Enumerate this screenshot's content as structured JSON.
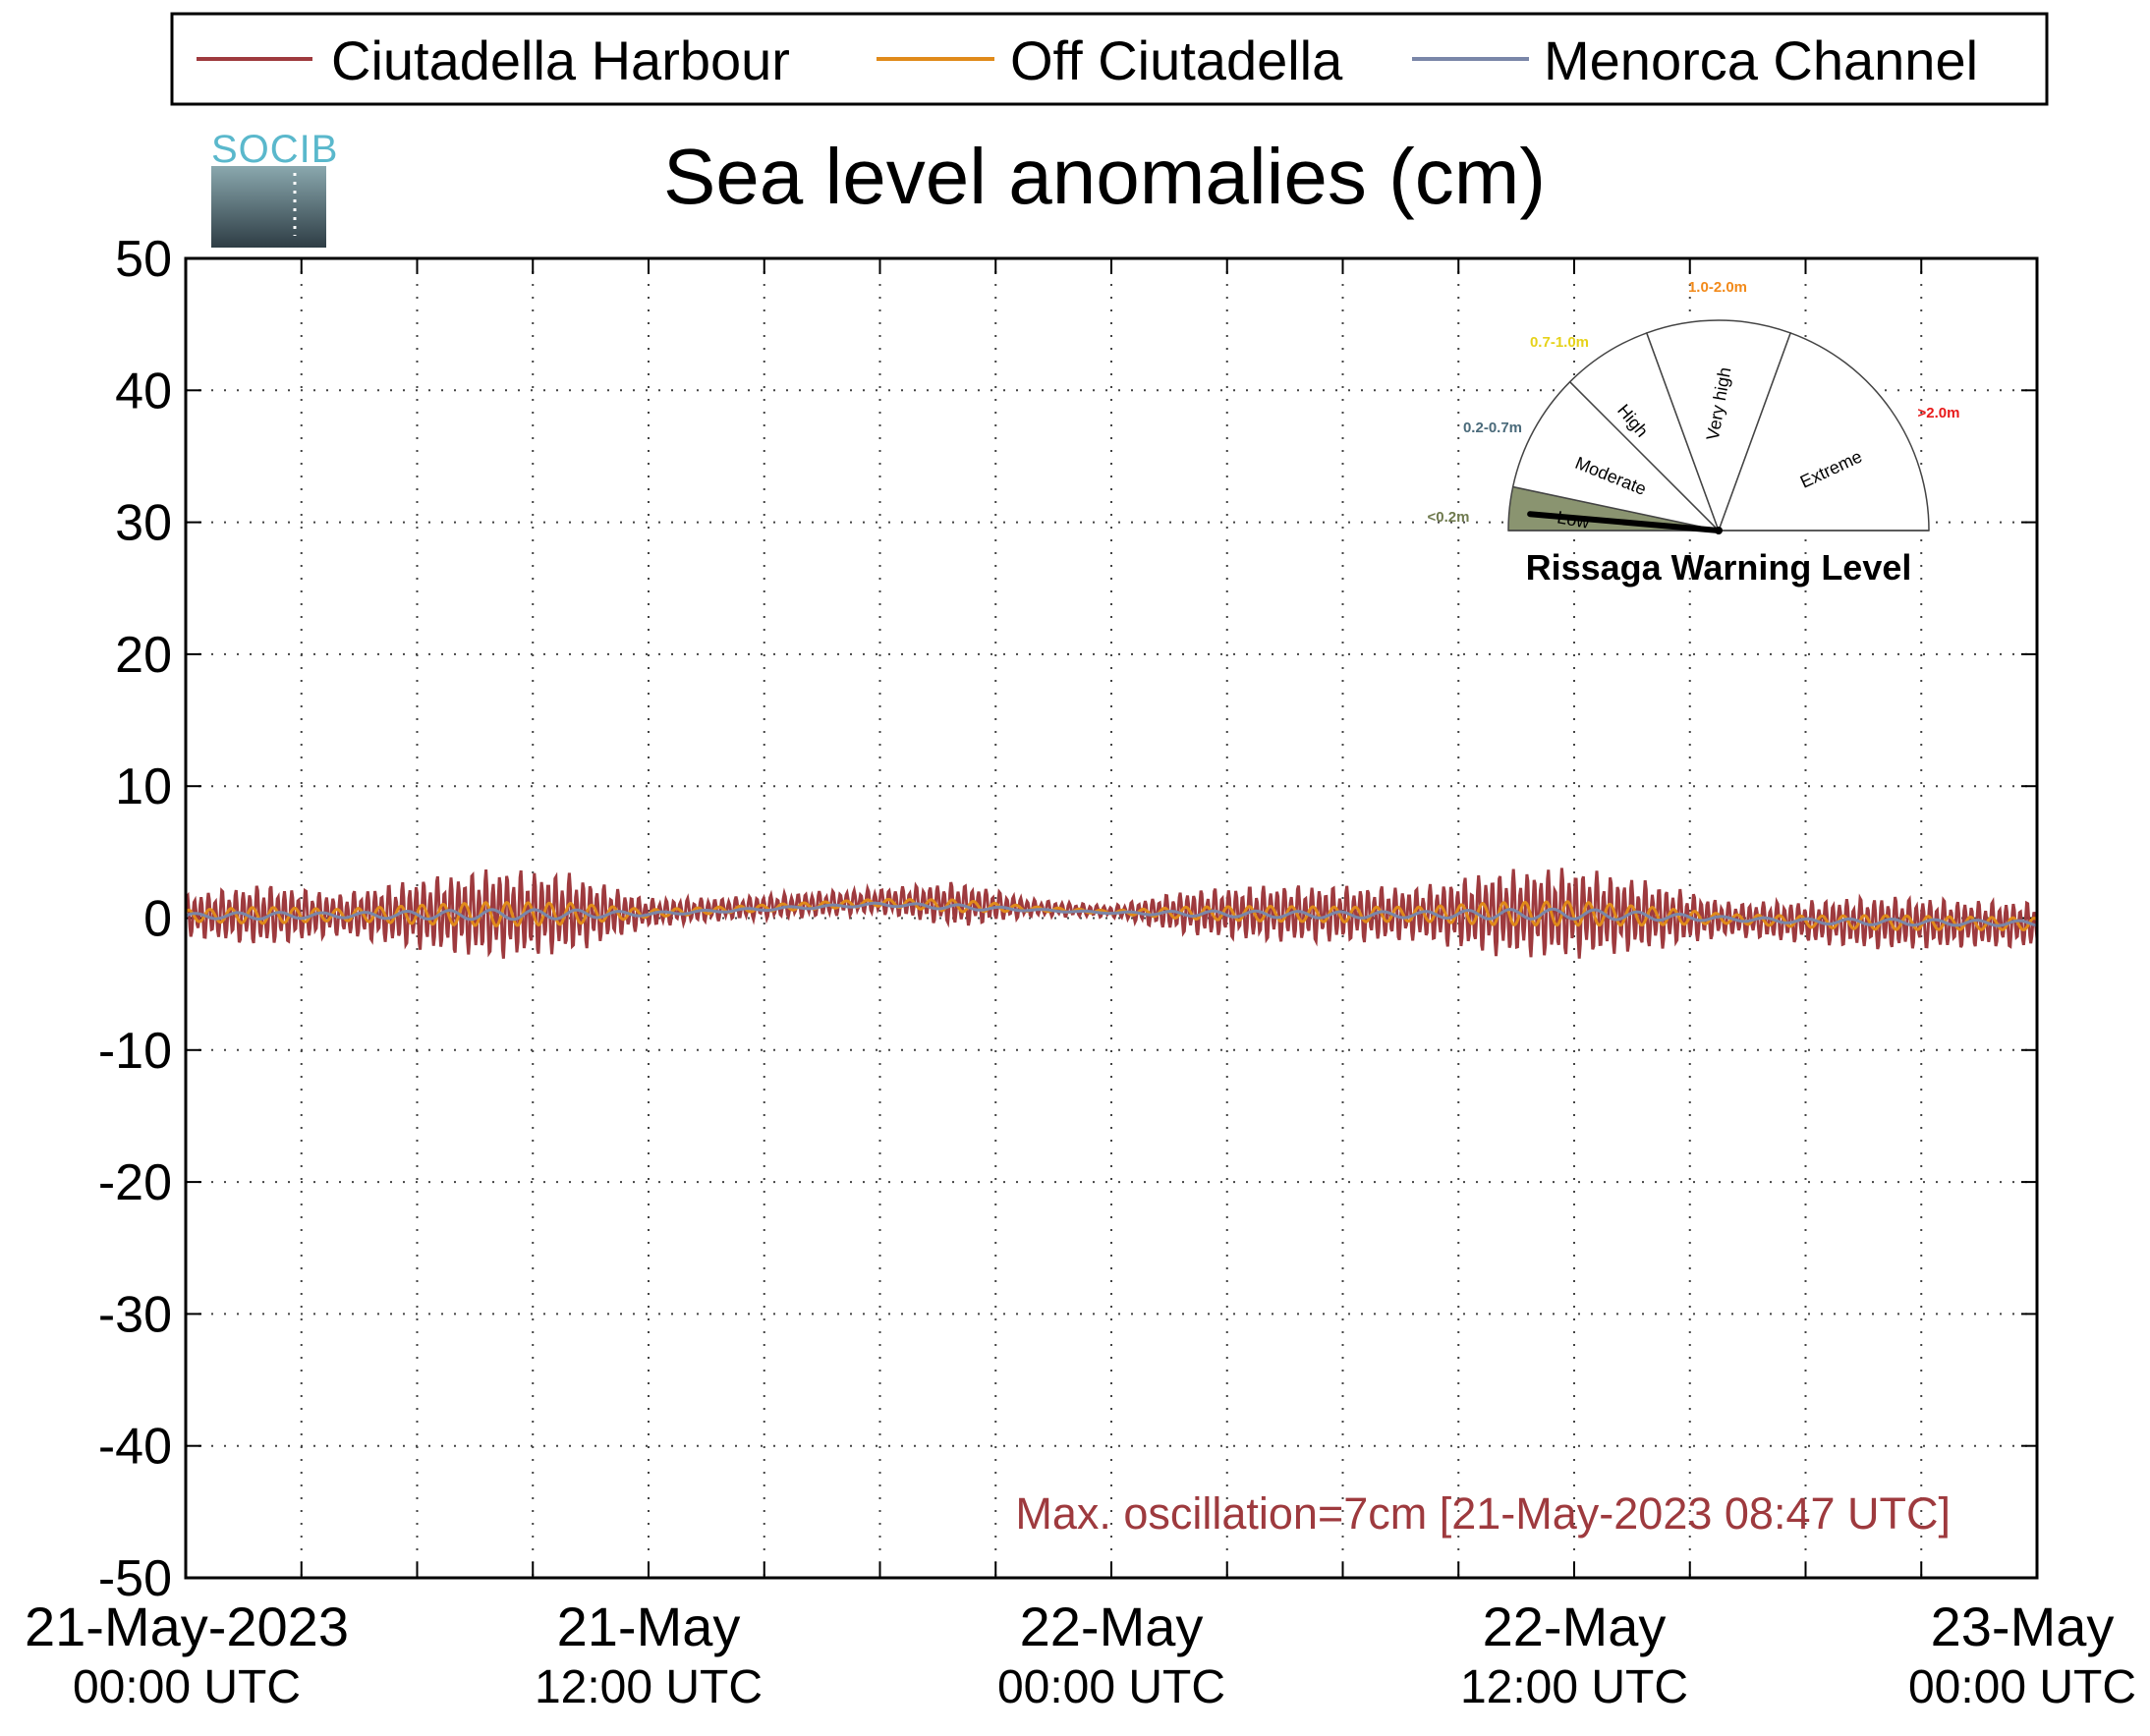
{
  "chart_data": {
    "type": "line",
    "title": "Sea level anomalies (cm)",
    "ylim": [
      -50,
      50
    ],
    "yticks": [
      50,
      40,
      30,
      20,
      10,
      0,
      -10,
      -20,
      -30,
      -40,
      -50
    ],
    "ytick_labels": [
      "50",
      "40",
      "30",
      "20",
      "10",
      "0",
      "-10",
      "-20",
      "-30",
      "-40",
      "-50"
    ],
    "xlim_hours": [
      0,
      48
    ],
    "xticks": [
      {
        "line1": "21-May-2023",
        "line2": "00:00 UTC",
        "hour": 0
      },
      {
        "line1": "21-May",
        "line2": "12:00 UTC",
        "hour": 12
      },
      {
        "line1": "22-May",
        "line2": "00:00 UTC",
        "hour": 24
      },
      {
        "line1": "22-May",
        "line2": "12:00 UTC",
        "hour": 36
      },
      {
        "line1": "23-May",
        "line2": "00:00 UTC",
        "hour": 48
      }
    ],
    "grid": true,
    "legend_position": "top",
    "series": [
      {
        "name": "Ciutadella Harbour",
        "color": "#9e3a3e",
        "envelope_hours": [
          0,
          2,
          4,
          6,
          8,
          10,
          12,
          14,
          16,
          18,
          20,
          22,
          24,
          26,
          28,
          30,
          32,
          34,
          36,
          38,
          40,
          42,
          44,
          46,
          48
        ],
        "envelope_amplitude_cm": [
          1.5,
          2.2,
          1.5,
          2.5,
          3.2,
          2.8,
          1.0,
          0.8,
          0.9,
          0.9,
          1.6,
          0.6,
          0.4,
          1.6,
          2.0,
          2.0,
          1.9,
          3.0,
          3.2,
          2.4,
          1.2,
          1.5,
          1.9,
          1.7,
          1.6
        ],
        "baseline_hours": [
          0,
          6,
          12,
          18,
          24,
          30,
          36,
          42,
          48
        ],
        "baseline_cm": [
          0.2,
          0.3,
          0.4,
          1.3,
          0.5,
          0.3,
          0.4,
          -0.3,
          -0.5
        ]
      },
      {
        "name": "Off Ciutadella",
        "color": "#e08a1a"
      },
      {
        "name": "Menorca Channel",
        "color": "#7a86a8"
      }
    ],
    "annotation": {
      "text": "Max. oscillation=7cm [21-May-2023 08:47 UTC]",
      "color": "#9e3a3e"
    }
  },
  "logo": {
    "text": "SOCIB"
  },
  "gauge": {
    "title": "Rissaga Warning Level",
    "value_level": "Low",
    "sectors": [
      {
        "label": "Low",
        "range": "<0.2m",
        "range_color": "#6f7a4e",
        "fill": "#8a9470",
        "active": true
      },
      {
        "label": "Moderate",
        "range": "0.2-0.7m",
        "range_color": "#4a6a7a",
        "fill": "#ffffff",
        "active": false
      },
      {
        "label": "High",
        "range": "0.7-1.0m",
        "range_color": "#e6d21a",
        "fill": "#ffffff",
        "active": false
      },
      {
        "label": "Very high",
        "range": "1.0-2.0m",
        "range_color": "#f28a1a",
        "fill": "#ffffff",
        "active": false
      },
      {
        "label": "Extreme",
        "range": ">2.0m",
        "range_color": "#e81a1a",
        "fill": "#ffffff",
        "active": false
      }
    ]
  }
}
